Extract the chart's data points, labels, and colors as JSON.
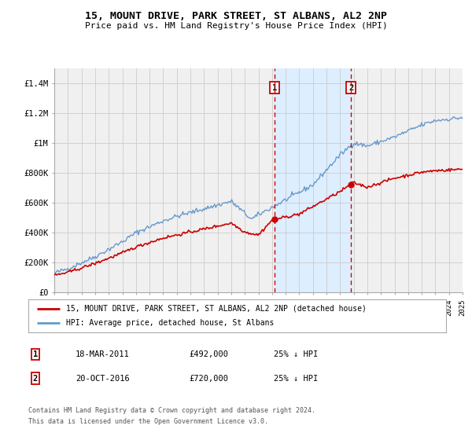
{
  "title": "15, MOUNT DRIVE, PARK STREET, ST ALBANS, AL2 2NP",
  "subtitle": "Price paid vs. HM Land Registry's House Price Index (HPI)",
  "red_label": "15, MOUNT DRIVE, PARK STREET, ST ALBANS, AL2 2NP (detached house)",
  "blue_label": "HPI: Average price, detached house, St Albans",
  "marker1_date": "18-MAR-2011",
  "marker1_price": 492000,
  "marker1_text": "25% ↓ HPI",
  "marker2_date": "20-OCT-2016",
  "marker2_price": 720000,
  "marker2_text": "25% ↓ HPI",
  "footnote1": "Contains HM Land Registry data © Crown copyright and database right 2024.",
  "footnote2": "This data is licensed under the Open Government Licence v3.0.",
  "red_color": "#cc0000",
  "blue_color": "#6699cc",
  "shade_color": "#ddeeff",
  "grid_color": "#cccccc",
  "background_color": "#f0f0f0",
  "ylim": [
    0,
    1500000
  ],
  "yticks": [
    0,
    200000,
    400000,
    600000,
    800000,
    1000000,
    1200000,
    1400000
  ],
  "ytick_labels": [
    "£0",
    "£200K",
    "£400K",
    "£600K",
    "£800K",
    "£1M",
    "£1.2M",
    "£1.4M"
  ],
  "marker1_x": 2011.21,
  "marker2_x": 2016.8,
  "xlim_start": 1995,
  "xlim_end": 2025
}
